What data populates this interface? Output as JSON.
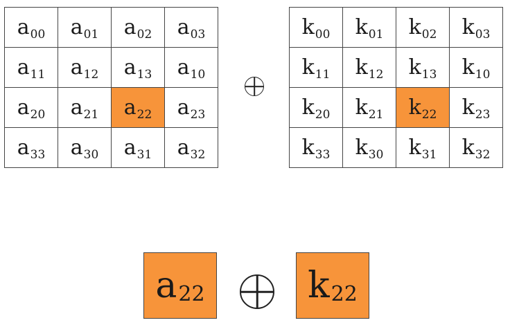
{
  "matrix_a": {
    "base": "a",
    "rows": [
      [
        "00",
        "01",
        "02",
        "03"
      ],
      [
        "11",
        "12",
        "13",
        "10"
      ],
      [
        "20",
        "21",
        "22",
        "23"
      ],
      [
        "33",
        "30",
        "31",
        "32"
      ]
    ],
    "highlight": [
      2,
      2
    ]
  },
  "matrix_k": {
    "base": "k",
    "rows": [
      [
        "00",
        "01",
        "02",
        "03"
      ],
      [
        "11",
        "12",
        "13",
        "10"
      ],
      [
        "20",
        "21",
        "22",
        "23"
      ],
      [
        "33",
        "30",
        "31",
        "32"
      ]
    ],
    "highlight": [
      2,
      2
    ]
  },
  "operator_symbol": "xor-circle-plus",
  "result": {
    "left": {
      "base": "a",
      "sub": "22"
    },
    "right": {
      "base": "k",
      "sub": "22"
    }
  },
  "highlight_color": "#f7943a"
}
